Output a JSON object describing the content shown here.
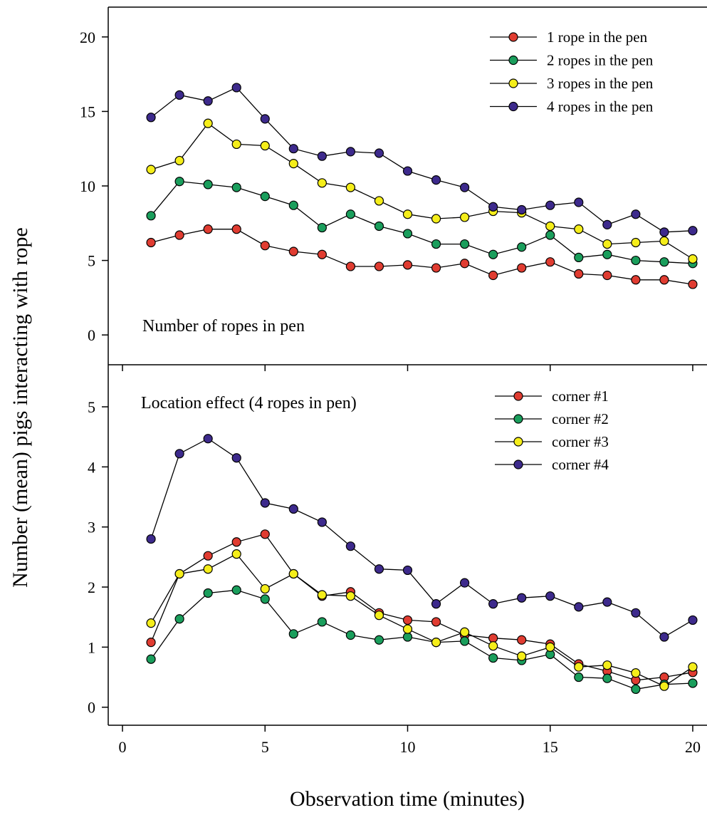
{
  "figure": {
    "xlabel": "Observation time (minutes)",
    "ylabel": "Number (mean) pigs interacting with rope"
  },
  "chart_data": [
    {
      "type": "line",
      "panel_label": "Number of ropes in pen",
      "x": [
        1,
        2,
        3,
        4,
        5,
        6,
        7,
        8,
        9,
        10,
        11,
        12,
        13,
        14,
        15,
        16,
        17,
        18,
        19,
        20
      ],
      "xlim": [
        -0.5,
        20.5
      ],
      "xticks": [
        0,
        5,
        10,
        15,
        20
      ],
      "ylim": [
        -2,
        22
      ],
      "yticks": [
        0,
        5,
        10,
        15,
        20
      ],
      "show_x_tick_labels": false,
      "legend_position": "top-right",
      "series": [
        {
          "name": "1 rope in the pen",
          "color": "#e03c31",
          "values": [
            6.2,
            6.7,
            7.1,
            7.1,
            6.0,
            5.6,
            5.4,
            4.6,
            4.6,
            4.7,
            4.5,
            4.8,
            4.0,
            4.5,
            4.9,
            4.1,
            4.0,
            3.7,
            3.7,
            3.4
          ]
        },
        {
          "name": "2 ropes in the pen",
          "color": "#1a9e5c",
          "values": [
            8.0,
            10.3,
            10.1,
            9.9,
            9.3,
            8.7,
            7.2,
            8.1,
            7.3,
            6.8,
            6.1,
            6.1,
            5.4,
            5.9,
            6.7,
            5.2,
            5.4,
            5.0,
            4.9,
            4.8
          ]
        },
        {
          "name": "3 ropes in the pen",
          "color": "#f5ee1a",
          "values": [
            11.1,
            11.7,
            14.2,
            12.8,
            12.7,
            11.5,
            10.2,
            9.9,
            9.0,
            8.1,
            7.8,
            7.9,
            8.3,
            8.2,
            7.3,
            7.1,
            6.1,
            6.2,
            6.3,
            5.1
          ]
        },
        {
          "name": "4 ropes in the pen",
          "color": "#3d2a8c",
          "values": [
            14.6,
            16.1,
            15.7,
            16.6,
            14.5,
            12.5,
            12.0,
            12.3,
            12.2,
            11.0,
            10.4,
            9.9,
            8.6,
            8.4,
            8.7,
            8.9,
            7.4,
            8.1,
            6.9,
            7.0
          ]
        }
      ]
    },
    {
      "type": "line",
      "panel_label": "Location effect (4 ropes in pen)",
      "x": [
        1,
        2,
        3,
        4,
        5,
        6,
        7,
        8,
        9,
        10,
        11,
        12,
        13,
        14,
        15,
        16,
        17,
        18,
        19,
        20
      ],
      "xlim": [
        -0.5,
        20.5
      ],
      "xticks": [
        0,
        5,
        10,
        15,
        20
      ],
      "ylim": [
        -0.3,
        5.7
      ],
      "yticks": [
        0,
        1,
        2,
        3,
        4,
        5
      ],
      "show_x_tick_labels": true,
      "legend_position": "top-right",
      "series": [
        {
          "name": "corner #1",
          "color": "#e03c31",
          "values": [
            1.08,
            2.22,
            2.52,
            2.75,
            2.88,
            2.22,
            1.85,
            1.92,
            1.57,
            1.45,
            1.42,
            1.2,
            1.15,
            1.12,
            1.05,
            0.72,
            0.6,
            0.45,
            0.5,
            0.58
          ]
        },
        {
          "name": "corner #2",
          "color": "#1a9e5c",
          "values": [
            0.8,
            1.47,
            1.9,
            1.95,
            1.8,
            1.22,
            1.42,
            1.2,
            1.12,
            1.17,
            1.08,
            1.1,
            0.82,
            0.78,
            0.88,
            0.5,
            0.48,
            0.3,
            0.38,
            0.4
          ]
        },
        {
          "name": "corner #3",
          "color": "#f5ee1a",
          "values": [
            1.4,
            2.22,
            2.3,
            2.55,
            1.97,
            2.22,
            1.87,
            1.85,
            1.53,
            1.3,
            1.08,
            1.25,
            1.02,
            0.85,
            1.0,
            0.67,
            0.7,
            0.57,
            0.35,
            0.67
          ]
        },
        {
          "name": "corner #4",
          "color": "#3d2a8c",
          "values": [
            2.8,
            4.22,
            4.47,
            4.15,
            3.4,
            3.3,
            3.08,
            2.68,
            2.3,
            2.28,
            1.72,
            2.07,
            1.72,
            1.82,
            1.85,
            1.67,
            1.75,
            1.57,
            1.17,
            1.45
          ]
        }
      ]
    }
  ]
}
